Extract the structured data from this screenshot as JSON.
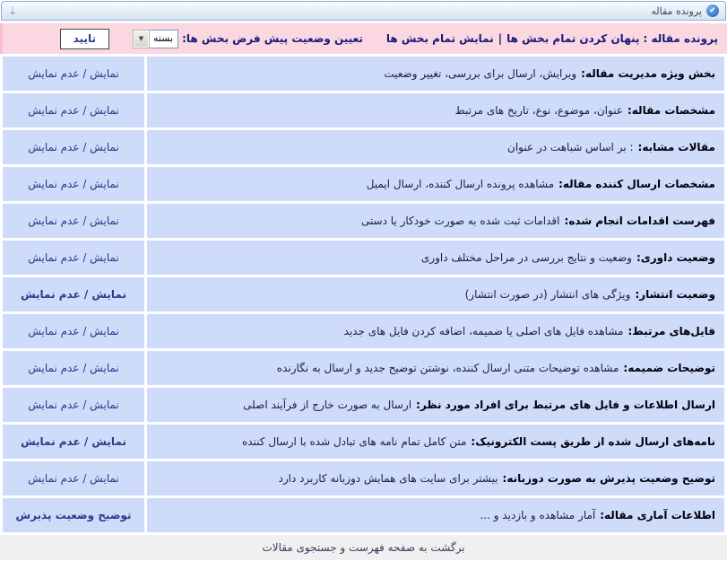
{
  "header": {
    "title": "پرونده مقاله",
    "check_icon_glyph": "✔",
    "anchor_icon_glyph": "⇣"
  },
  "toolbar": {
    "title_label": "پرونده مقاله :",
    "hide_all_link": "پنهان کردن تمام بخش ها",
    "separator": "|",
    "show_all_link": "نمایش تمام بخش ها",
    "default_status_label": "تعیین وضعیت پیش فرض بخش ها:",
    "select_value": "بسته",
    "select_arrow_glyph": "▼",
    "confirm_button": "تایید"
  },
  "rows": [
    {
      "title": "بخش ویژه مدیریت مقاله:",
      "desc": "ویرایش، ارسال برای بررسی، تغییر وضعیت",
      "action": "نمایش / عدم نمایش"
    },
    {
      "title": "مشخصات مقاله:",
      "desc": "عنوان، موضوع، نوع، تاریخ های مرتبط",
      "action": "نمایش / عدم نمایش"
    },
    {
      "title": "مقالات مشابه:",
      "desc": ": بر اساس شباهت در عنوان",
      "action": "نمایش / عدم نمایش"
    },
    {
      "title": "مشخصات ارسال کننده مقاله:",
      "desc": "مشاهده پرونده ارسال کننده، ارسال ایمیل",
      "action": "نمایش / عدم نمایش"
    },
    {
      "title": "فهرست اقدامات انجام شده:",
      "desc": "اقدامات ثبت شده به صورت خودکار یا دستی",
      "action": "نمایش / عدم نمایش"
    },
    {
      "title": "وضعیت داوری:",
      "desc": "وضعیت و نتایج بررسی در مراحل مختلف داوری",
      "action": "نمایش / عدم نمایش"
    },
    {
      "title": "وضعیت انتشار:",
      "desc": "ویژگی های انتشار (در صورت انتشار)",
      "action": "نمایش / عدم نمایش"
    },
    {
      "title": "فایل‌های مرتبط:",
      "desc": "مشاهده فایل های اصلی یا ضمیمه، اضافه کردن فایل های جدید",
      "action": "نمایش / عدم نمایش"
    },
    {
      "title": "توضیحات ضمیمه:",
      "desc": "مشاهده توضیحات متنی ارسال کننده، نوشتن توضیح جدید و ارسال به نگارنده",
      "action": "نمایش / عدم نمایش"
    },
    {
      "title": "ارسال اطلاعات و فایل های مرتبط برای افراد مورد نظر:",
      "desc": "ارسال به صورت خارج از فرآیند اصلی",
      "action": "نمایش / عدم نمایش"
    },
    {
      "title": "نامه‌های ارسال شده از طریق پست الکترونیک:",
      "desc": "متن کامل تمام نامه های تبادل شده با ارسال کننده",
      "action": "نمایش / عدم نمایش"
    },
    {
      "title": "توضیح وضعیت پذیرش به صورت دوزبانه:",
      "desc": "بیشتر برای سایت های همایش دوزبانه کاربرد دارد",
      "action": "نمایش / عدم نمایش"
    },
    {
      "title": "اطلاعات آماری مقاله:",
      "desc": "آمار مشاهده و بازدید و ...",
      "action": "توضیح وضعیت پذیرش"
    }
  ],
  "footer": {
    "back_link": "برگشت به صفحه فهرست و جستجوی مقالات"
  },
  "colors": {
    "toolbar_pink": "#fbd7e2",
    "row_blue": "#cedcfa",
    "link_navy": "#2d3a8c",
    "toolbar_text_navy": "#19197a",
    "footer_gray": "#f0f0f0",
    "header_border_blue": "#8fafd0"
  }
}
